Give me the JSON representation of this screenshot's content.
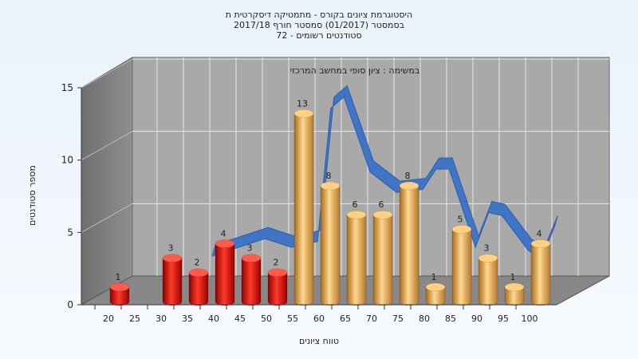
{
  "chart_data": {
    "type": "bar",
    "title_lines": [
      "היסטוגרמת ציונים בקורס - מתמטיקה דיסקרטית ת",
      "בסמסטר (01/2017) סמסטר חורף 2017/18",
      "סטודנטים רשומים - 72"
    ],
    "subtitle": "במשימה : ציון סופי במחשב המרכזי",
    "xlabel": "טווח ציונים",
    "ylabel": "מספר סטודנטים",
    "x_ticks": [
      "20",
      "25",
      "30",
      "35",
      "40",
      "45",
      "50",
      "55",
      "60",
      "65",
      "70",
      "75",
      "80",
      "85",
      "90",
      "95",
      "100"
    ],
    "y_ticks": [
      "0",
      "5",
      "10",
      "15"
    ],
    "ylim": [
      0,
      15
    ],
    "grid": true,
    "bars": [
      {
        "x": 20,
        "value": 1,
        "label": "1",
        "group": "fail"
      },
      {
        "x": 30,
        "value": 3,
        "label": "3",
        "group": "fail"
      },
      {
        "x": 35,
        "value": 2,
        "label": "2",
        "group": "fail"
      },
      {
        "x": 40,
        "value": 4,
        "label": "4",
        "group": "fail"
      },
      {
        "x": 45,
        "value": 3,
        "label": "3",
        "group": "fail"
      },
      {
        "x": 50,
        "value": 2,
        "label": "2",
        "group": "fail"
      },
      {
        "x": 55,
        "value": 13,
        "label": "13",
        "group": "pass"
      },
      {
        "x": 60,
        "value": 8,
        "label": "8",
        "group": "pass"
      },
      {
        "x": 65,
        "value": 6,
        "label": "6",
        "group": "pass"
      },
      {
        "x": 70,
        "value": 6,
        "label": "6",
        "group": "pass"
      },
      {
        "x": 75,
        "value": 8,
        "label": "8",
        "group": "pass"
      },
      {
        "x": 80,
        "value": 1,
        "label": "1",
        "group": "pass"
      },
      {
        "x": 85,
        "value": 5,
        "label": "5",
        "group": "pass"
      },
      {
        "x": 90,
        "value": 3,
        "label": "3",
        "group": "pass"
      },
      {
        "x": 95,
        "value": 1,
        "label": "1",
        "group": "pass"
      },
      {
        "x": 100,
        "value": 4,
        "label": "4",
        "group": "pass"
      }
    ],
    "trend_line": {
      "points": [
        {
          "x": 35,
          "y": 2.6
        },
        {
          "x": 40,
          "y": 3.2
        },
        {
          "x": 45,
          "y": 3.8
        },
        {
          "x": 50,
          "y": 3.2
        },
        {
          "x": 55,
          "y": 3.6
        },
        {
          "x": 57.5,
          "y": 12.8
        },
        {
          "x": 60,
          "y": 13.6
        },
        {
          "x": 65,
          "y": 8.4
        },
        {
          "x": 70,
          "y": 7.0
        },
        {
          "x": 75,
          "y": 7.2
        },
        {
          "x": 77.5,
          "y": 8.6
        },
        {
          "x": 80,
          "y": 8.6
        },
        {
          "x": 85,
          "y": 3.2
        },
        {
          "x": 87.5,
          "y": 5.6
        },
        {
          "x": 90,
          "y": 5.4
        },
        {
          "x": 95,
          "y": 3.0
        },
        {
          "x": 97.5,
          "y": 2.4
        },
        {
          "x": 100,
          "y": 4.6
        }
      ]
    },
    "colors": {
      "fail": "#e01010",
      "pass": "#e0a040",
      "trend": "#3a72c8",
      "plot_bg": "#a9a9a9",
      "wall": "#7d7d7d",
      "floor": "#8a8a8a"
    }
  }
}
